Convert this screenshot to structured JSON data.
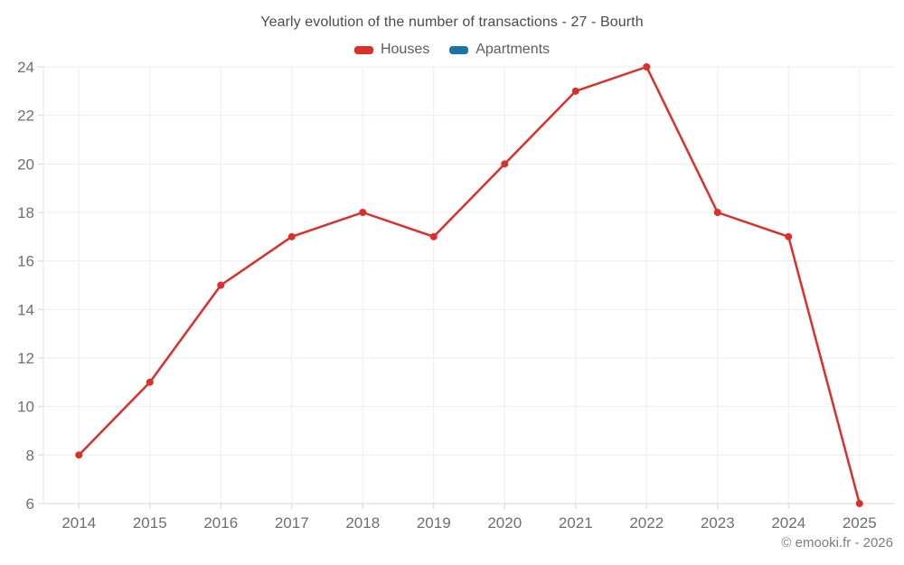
{
  "title": "Yearly evolution of the number of transactions - 27 - Bourth",
  "footer": "© emooki.fr - 2026",
  "colors": {
    "houses": "#d9302c",
    "apartments": "#1b74a8",
    "grid": "#ededed",
    "axis_line": "#d6d6d6",
    "tick_label": "#6f6f6f",
    "background": "#ffffff"
  },
  "chart_data": {
    "type": "line",
    "title": "Yearly evolution of the number of transactions - 27 - Bourth",
    "categories": [
      "2014",
      "2015",
      "2016",
      "2017",
      "2018",
      "2019",
      "2020",
      "2021",
      "2022",
      "2023",
      "2024",
      "2025"
    ],
    "series": [
      {
        "name": "Houses",
        "color": "#d9302c",
        "values": [
          8,
          11,
          15,
          17,
          18,
          17,
          20,
          23,
          24,
          18,
          17,
          6
        ]
      },
      {
        "name": "Apartments",
        "color": "#1b74a8",
        "values": []
      }
    ],
    "xlabel": "",
    "ylabel": "",
    "ylim": [
      6,
      24
    ],
    "ytick_step": 2,
    "grid": true,
    "legend_position": "top",
    "point_radius": 4,
    "line_width": 2.5
  }
}
